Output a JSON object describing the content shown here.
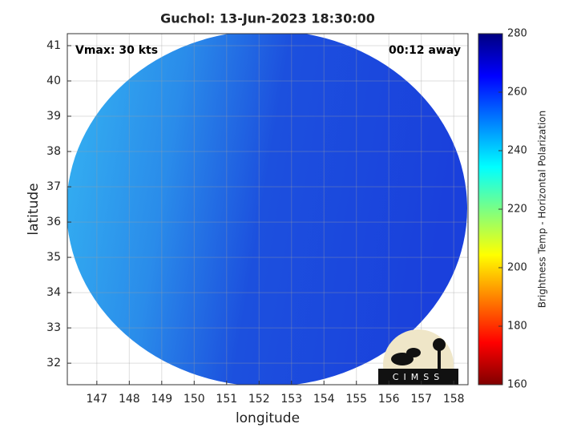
{
  "chart_data": {
    "type": "image_map",
    "title": "Guchol: 13-Jun-2023 18:30:00",
    "xlabel": "longitude",
    "ylabel": "latitude",
    "annotations": [
      "Vmax: 30 kts",
      "00:12 away"
    ],
    "xlim": [
      146.09,
      158.44
    ],
    "ylim": [
      31.39,
      41.34
    ],
    "xticks": [
      147,
      148,
      149,
      150,
      151,
      152,
      153,
      154,
      155,
      156,
      157,
      158
    ],
    "yticks": [
      32,
      33,
      34,
      35,
      36,
      37,
      38,
      39,
      40,
      41
    ],
    "grid": true,
    "colorbar": {
      "label": "Brightness Temp - Horizontal Polarization",
      "clim": [
        160,
        280
      ],
      "ticks": [
        160,
        180,
        200,
        220,
        240,
        260,
        280
      ]
    },
    "logo": "CIMSS"
  }
}
